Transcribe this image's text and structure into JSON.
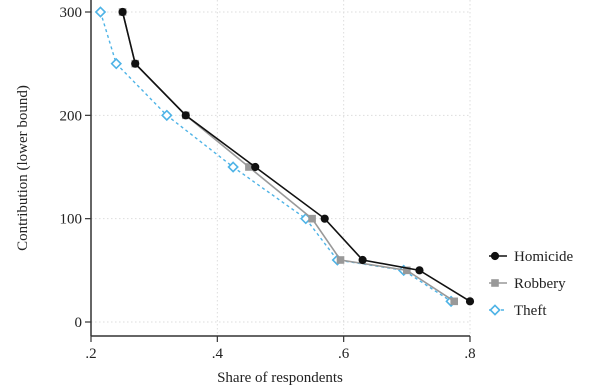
{
  "chart_data": {
    "type": "line",
    "title": "",
    "xlabel": "Share of respondents",
    "ylabel": "Contribution (lower bound)",
    "xlim": [
      0.2,
      0.8
    ],
    "ylim": [
      0,
      300
    ],
    "xticks": [
      0.2,
      0.4,
      0.6,
      0.8
    ],
    "xtick_labels": [
      ".2",
      ".4",
      ".6",
      ".8"
    ],
    "yticks": [
      0,
      100,
      200,
      300
    ],
    "ytick_labels": [
      "0",
      "100",
      "200",
      "300"
    ],
    "grid": true,
    "legend_position": "right",
    "series": [
      {
        "name": "Homicide",
        "color": "#111111",
        "marker": "circle",
        "line_style": "solid",
        "points": [
          {
            "x": 0.25,
            "y": 300
          },
          {
            "x": 0.27,
            "y": 250
          },
          {
            "x": 0.35,
            "y": 200
          },
          {
            "x": 0.46,
            "y": 150
          },
          {
            "x": 0.57,
            "y": 100
          },
          {
            "x": 0.63,
            "y": 60
          },
          {
            "x": 0.72,
            "y": 50
          },
          {
            "x": 0.8,
            "y": 20
          }
        ]
      },
      {
        "name": "Robbery",
        "color": "#999999",
        "marker": "square",
        "line_style": "solid",
        "points": [
          {
            "x": 0.25,
            "y": 300
          },
          {
            "x": 0.27,
            "y": 250
          },
          {
            "x": 0.35,
            "y": 200
          },
          {
            "x": 0.45,
            "y": 150
          },
          {
            "x": 0.55,
            "y": 100
          },
          {
            "x": 0.595,
            "y": 60
          },
          {
            "x": 0.7,
            "y": 50
          },
          {
            "x": 0.775,
            "y": 20
          }
        ]
      },
      {
        "name": "Theft",
        "color": "#4eb3e6",
        "marker": "diamond",
        "line_style": "dashed",
        "points": [
          {
            "x": 0.215,
            "y": 300
          },
          {
            "x": 0.24,
            "y": 250
          },
          {
            "x": 0.32,
            "y": 200
          },
          {
            "x": 0.425,
            "y": 150
          },
          {
            "x": 0.54,
            "y": 100
          },
          {
            "x": 0.59,
            "y": 60
          },
          {
            "x": 0.695,
            "y": 50
          },
          {
            "x": 0.77,
            "y": 20
          }
        ]
      }
    ]
  }
}
